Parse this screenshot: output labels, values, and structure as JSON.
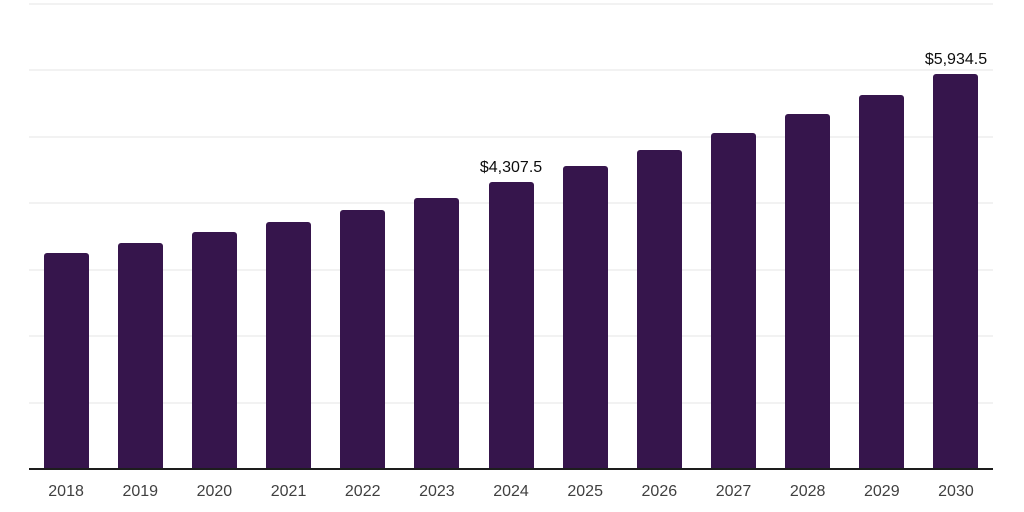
{
  "chart_data": {
    "type": "bar",
    "title": "",
    "xlabel": "",
    "ylabel": "",
    "categories": [
      "2018",
      "2019",
      "2020",
      "2021",
      "2022",
      "2023",
      "2024",
      "2025",
      "2026",
      "2027",
      "2028",
      "2029",
      "2030"
    ],
    "values": [
      3230,
      3390,
      3550,
      3710,
      3890,
      4070,
      4307.5,
      4540,
      4790,
      5050,
      5330,
      5620,
      5934.5
    ],
    "point_labels": [
      "",
      "",
      "",
      "",
      "",
      "",
      "$4,307.5",
      "",
      "",
      "",
      "",
      "",
      "$5,934.5"
    ],
    "ylim": [
      0,
      7000
    ],
    "gridline_step": 1000,
    "grid": true,
    "legend": false,
    "colors": {
      "bar": "#36154c",
      "gridline": "#f2f2f2",
      "axis_line": "#1d1d1d",
      "x_label_text": "#404040",
      "value_label_text": "#0d0d0d",
      "background": "#ffffff"
    }
  }
}
